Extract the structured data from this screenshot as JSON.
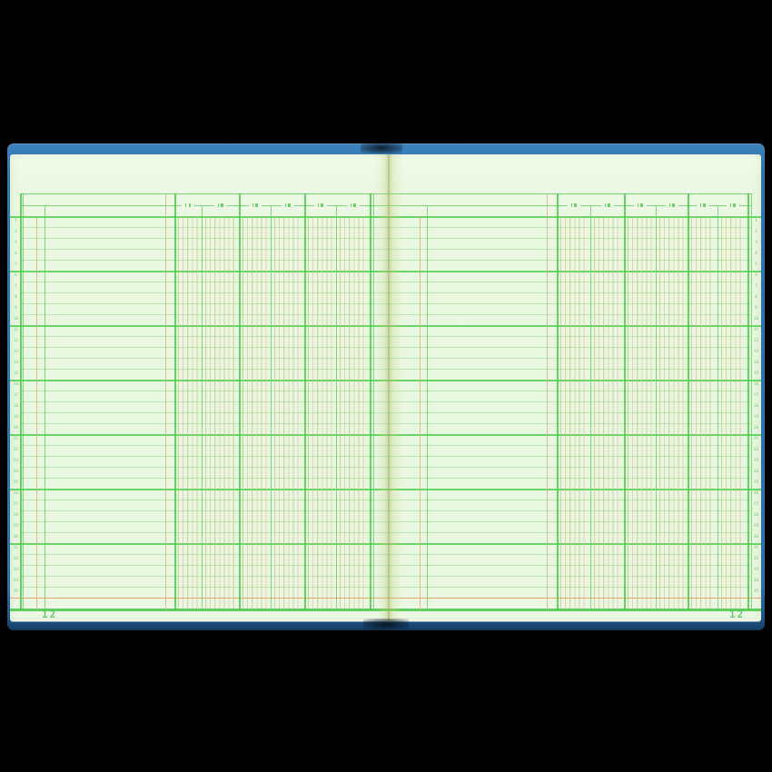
{
  "book": {
    "type_label": "columnar ledger spread",
    "left_page": {
      "page_number": "12",
      "row_count": 35,
      "money_columns": 6,
      "column_groups": 3
    },
    "right_page": {
      "page_number": "12",
      "row_count": 35,
      "money_columns": 6,
      "column_groups": 3
    },
    "colors": {
      "background": "#000000",
      "cover_blue": "#2f76b1",
      "page_green": "#e9f7e0",
      "rule_green_heavy": "#4bcd4b",
      "rule_green_thin": "#96d88c",
      "rule_tan": "#d6ac76",
      "total_rule_orange": "#e09860",
      "page_number_green": "#58bd62",
      "fold_shadow": "#acbc69"
    }
  }
}
